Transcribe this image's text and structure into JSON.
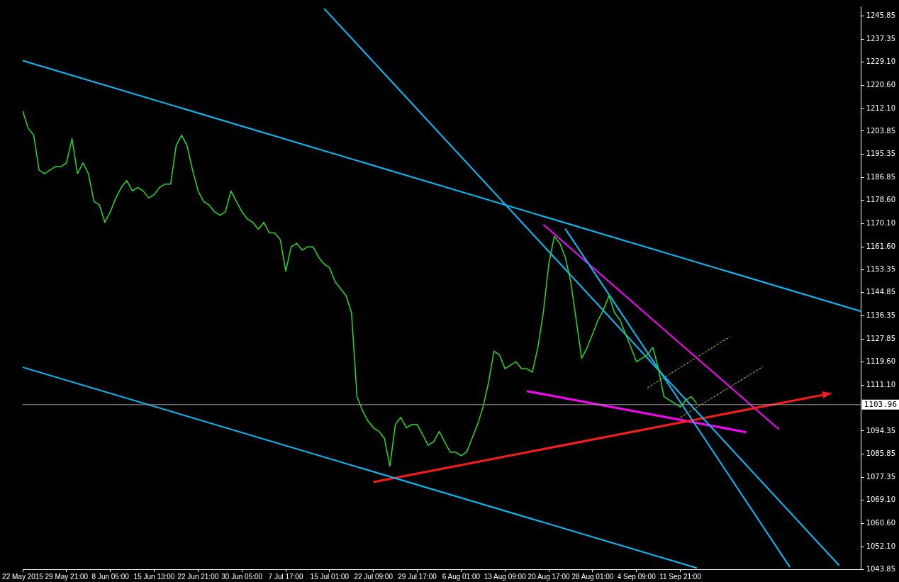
{
  "chart_data": {
    "type": "line",
    "categories": [
      "22 May 2015",
      null,
      null,
      null,
      null,
      null,
      null,
      null,
      "29 May 21:00",
      null,
      null,
      null,
      null,
      null,
      null,
      null,
      "8 Jun 05:00",
      null,
      null,
      null,
      null,
      null,
      null,
      null,
      "15 Jun 13:00",
      null,
      null,
      null,
      null,
      null,
      null,
      null,
      "22 Jun 21:00",
      null,
      null,
      null,
      null,
      null,
      null,
      null,
      "30 Jun 05:00",
      null,
      null,
      null,
      null,
      null,
      null,
      null,
      "7 Jul 17:00",
      null,
      null,
      null,
      null,
      null,
      null,
      null,
      "15 Jul 01:00",
      null,
      null,
      null,
      null,
      null,
      null,
      null,
      "22 Jul 09:00",
      null,
      null,
      null,
      null,
      null,
      null,
      null,
      "29 Jul 17:00",
      null,
      null,
      null,
      null,
      null,
      null,
      null,
      "6 Aug 01:00",
      null,
      null,
      null,
      null,
      null,
      null,
      null,
      "13 Aug 09:00",
      null,
      null,
      null,
      null,
      null,
      null,
      null,
      "20 Aug 17:00",
      null,
      null,
      null,
      null,
      null,
      null,
      null,
      "28 Aug 01:00",
      null,
      null,
      null,
      null,
      null,
      null,
      null,
      "4 Sep 09:00",
      null,
      null,
      null,
      null,
      null,
      null,
      null,
      "11 Sep 21:00",
      null,
      null,
      null,
      null,
      null,
      null,
      null,
      null,
      null,
      null,
      null,
      null,
      null,
      null,
      null,
      null,
      null,
      null,
      null,
      null,
      null,
      null,
      null,
      null,
      null,
      null,
      null,
      null,
      null,
      null,
      null,
      null,
      null
    ],
    "ylim": [
      1043.85,
      1249.4
    ],
    "yticks": [
      {
        "value": 1043.85,
        "label": "1043.85"
      },
      {
        "value": 1052.1,
        "label": "1052.10"
      },
      {
        "value": 1060.6,
        "label": "1060.60"
      },
      {
        "value": 1069.1,
        "label": "1069.10"
      },
      {
        "value": 1077.35,
        "label": "1077.35"
      },
      {
        "value": 1085.85,
        "label": "1085.85"
      },
      {
        "value": 1094.35,
        "label": "1094.35"
      },
      {
        "value": 1111.1,
        "label": "1111.10"
      },
      {
        "value": 1119.6,
        "label": "1119.60"
      },
      {
        "value": 1127.85,
        "label": "1127.85"
      },
      {
        "value": 1136.35,
        "label": "1136.35"
      },
      {
        "value": 1144.85,
        "label": "1144.85"
      },
      {
        "value": 1153.35,
        "label": "1153.35"
      },
      {
        "value": 1161.6,
        "label": "1161.60"
      },
      {
        "value": 1170.1,
        "label": "1170.10"
      },
      {
        "value": 1178.6,
        "label": "1178.60"
      },
      {
        "value": 1186.85,
        "label": "1186.85"
      },
      {
        "value": 1195.35,
        "label": "1195.35"
      },
      {
        "value": 1203.85,
        "label": "1203.85"
      },
      {
        "value": 1212.1,
        "label": "1212.10"
      },
      {
        "value": 1220.6,
        "label": "1220.60"
      },
      {
        "value": 1229.1,
        "label": "1229.10"
      },
      {
        "value": 1237.35,
        "label": "1237.35"
      },
      {
        "value": 1245.85,
        "label": "1245.85"
      }
    ],
    "grid": false,
    "legend": false,
    "ref_lines": [
      {
        "axis": "y",
        "value": 1103.96,
        "label": "1103.96",
        "color": "#9a9a9a"
      }
    ],
    "series": [
      {
        "type": "line",
        "color": "#22dd22",
        "values": [
          1211.2,
          1204.9,
          1202.4,
          1189.6,
          1188.3,
          1189.6,
          1190.9,
          1190.9,
          1192.2,
          1201.1,
          1188.3,
          1192.2,
          1188.3,
          1178.2,
          1176.9,
          1170.5,
          1174.4,
          1179.4,
          1183.3,
          1185.8,
          1182.0,
          1183.3,
          1182.0,
          1179.4,
          1180.7,
          1183.3,
          1184.5,
          1184.5,
          1198.5,
          1202.4,
          1198.5,
          1189.6,
          1182.0,
          1178.2,
          1176.9,
          1174.4,
          1173.1,
          1174.4,
          1182.0,
          1178.2,
          1174.4,
          1171.8,
          1170.5,
          1168.0,
          1170.5,
          1166.7,
          1166.7,
          1164.2,
          1152.7,
          1161.6,
          1162.9,
          1160.4,
          1161.6,
          1161.6,
          1157.8,
          1155.3,
          1154.0,
          1148.9,
          1146.3,
          1143.8,
          1137.5,
          1106.9,
          1101.8,
          1098.0,
          1095.5,
          1094.2,
          1091.7,
          1081.5,
          1096.7,
          1099.3,
          1095.5,
          1096.7,
          1096.7,
          1092.9,
          1089.1,
          1090.4,
          1094.2,
          1090.4,
          1086.6,
          1086.6,
          1085.3,
          1086.6,
          1091.7,
          1096.7,
          1103.1,
          1112.0,
          1123.5,
          1122.2,
          1117.1,
          1118.4,
          1119.6,
          1117.1,
          1117.1,
          1115.8,
          1124.8,
          1137.5,
          1155.3,
          1165.4,
          1162.9,
          1157.8,
          1148.9,
          1134.9,
          1120.9,
          1124.8,
          1129.8,
          1134.9,
          1138.7,
          1143.8,
          1137.5,
          1134.9,
          1129.8,
          1124.8,
          1119.6,
          1120.9,
          1122.2,
          1124.8,
          1117.1,
          1106.9,
          1105.6,
          1104.4,
          1103.1,
          1105.6,
          1106.9,
          1104.4,
          null,
          null,
          null,
          null,
          null,
          null,
          null,
          null,
          null,
          null,
          null,
          null,
          null,
          null,
          null,
          null,
          null,
          null,
          null,
          null,
          null,
          null,
          null,
          null,
          null,
          null,
          null,
          null,
          null,
          null
        ]
      },
      {
        "type": "line",
        "color": "#00bfff",
        "values": [
          1229.6,
          null,
          null,
          null,
          null,
          null,
          null,
          null,
          null,
          null,
          null,
          null,
          null,
          null,
          null,
          null,
          null,
          null,
          null,
          null,
          null,
          null,
          null,
          null,
          null,
          null,
          null,
          null,
          null,
          null,
          null,
          null,
          null,
          null,
          null,
          null,
          null,
          null,
          null,
          null,
          null,
          null,
          null,
          null,
          null,
          null,
          null,
          null,
          null,
          null,
          null,
          null,
          null,
          null,
          null,
          null,
          null,
          null,
          null,
          null,
          null,
          null,
          null,
          null,
          null,
          null,
          null,
          null,
          null,
          null,
          null,
          null,
          null,
          null,
          null,
          null,
          null,
          null,
          null,
          null,
          null,
          null,
          null,
          null,
          null,
          null,
          null,
          null,
          null,
          null,
          null,
          null,
          null,
          null,
          null,
          null,
          null,
          null,
          null,
          null,
          null,
          null,
          null,
          null,
          null,
          null,
          null,
          null,
          null,
          null,
          null,
          null,
          null,
          null,
          null,
          null,
          null,
          null,
          null,
          null,
          null,
          null,
          null,
          null,
          null,
          null,
          null,
          null,
          null,
          null,
          null,
          null,
          null,
          null,
          null,
          null,
          null,
          null,
          null,
          null,
          null,
          null,
          null,
          null,
          null,
          null,
          null,
          null,
          null,
          null,
          null,
          null,
          null,
          1138.0
        ]
      },
      {
        "type": "line",
        "color": "#00bfff",
        "values": [
          1117.6,
          null,
          null,
          null,
          null,
          null,
          null,
          null,
          null,
          null,
          null,
          null,
          null,
          null,
          null,
          null,
          null,
          null,
          null,
          null,
          null,
          null,
          null,
          null,
          null,
          null,
          null,
          null,
          null,
          null,
          null,
          null,
          null,
          null,
          null,
          null,
          null,
          null,
          null,
          null,
          null,
          null,
          null,
          null,
          null,
          null,
          null,
          null,
          null,
          null,
          null,
          null,
          null,
          null,
          null,
          null,
          null,
          null,
          null,
          null,
          null,
          null,
          null,
          null,
          null,
          null,
          null,
          null,
          null,
          null,
          null,
          null,
          null,
          null,
          null,
          null,
          null,
          null,
          null,
          null,
          null,
          null,
          null,
          null,
          null,
          null,
          null,
          null,
          null,
          null,
          null,
          null,
          null,
          null,
          null,
          null,
          null,
          null,
          null,
          null,
          null,
          null,
          null,
          null,
          null,
          null,
          null,
          null,
          null,
          null,
          null,
          null,
          null,
          null,
          null,
          null,
          null,
          null,
          null,
          null,
          null,
          null,
          null,
          1044.3,
          null,
          null,
          null,
          null,
          null,
          null,
          null,
          null,
          null,
          null,
          null,
          null,
          null,
          null,
          null,
          null,
          null,
          null,
          null,
          null,
          null,
          null,
          null,
          null,
          null,
          null,
          null,
          null,
          null,
          null
        ]
      },
      {
        "type": "line",
        "color": "#00bfff",
        "values": [
          null,
          null,
          null,
          null,
          null,
          null,
          null,
          null,
          null,
          null,
          null,
          null,
          null,
          null,
          null,
          null,
          null,
          null,
          null,
          null,
          null,
          null,
          null,
          null,
          null,
          null,
          null,
          null,
          null,
          null,
          null,
          null,
          null,
          null,
          null,
          null,
          null,
          null,
          null,
          null,
          null,
          null,
          null,
          null,
          null,
          null,
          null,
          null,
          null,
          null,
          null,
          null,
          null,
          null,
          null,
          1248.6,
          null,
          null,
          null,
          null,
          null,
          null,
          null,
          null,
          null,
          null,
          null,
          null,
          null,
          null,
          null,
          null,
          null,
          null,
          null,
          null,
          null,
          null,
          null,
          null,
          null,
          null,
          null,
          null,
          null,
          null,
          null,
          null,
          null,
          null,
          null,
          null,
          null,
          null,
          null,
          null,
          null,
          null,
          null,
          null,
          null,
          null,
          null,
          null,
          null,
          null,
          null,
          null,
          null,
          null,
          null,
          null,
          null,
          null,
          null,
          null,
          null,
          null,
          null,
          null,
          null,
          null,
          null,
          null,
          null,
          null,
          null,
          null,
          null,
          null,
          null,
          null,
          null,
          null,
          null,
          null,
          null,
          null,
          null,
          null,
          null,
          null,
          null,
          null,
          null,
          null,
          null,
          null,
          null,
          1045.2,
          null,
          null,
          null,
          null
        ]
      },
      {
        "type": "line",
        "color": "#00bfff",
        "values": [
          null,
          null,
          null,
          null,
          null,
          null,
          null,
          null,
          null,
          null,
          null,
          null,
          null,
          null,
          null,
          null,
          null,
          null,
          null,
          null,
          null,
          null,
          null,
          null,
          null,
          null,
          null,
          null,
          null,
          null,
          null,
          null,
          null,
          null,
          null,
          null,
          null,
          null,
          null,
          null,
          null,
          null,
          null,
          null,
          null,
          null,
          null,
          null,
          null,
          null,
          null,
          null,
          null,
          null,
          null,
          null,
          null,
          null,
          null,
          null,
          null,
          null,
          null,
          null,
          null,
          null,
          null,
          null,
          null,
          null,
          null,
          null,
          null,
          null,
          null,
          null,
          null,
          null,
          null,
          null,
          null,
          null,
          null,
          null,
          null,
          null,
          null,
          null,
          null,
          null,
          null,
          null,
          null,
          null,
          null,
          null,
          null,
          null,
          null,
          1168.2,
          null,
          null,
          null,
          null,
          null,
          null,
          null,
          null,
          null,
          null,
          null,
          null,
          null,
          null,
          null,
          null,
          null,
          null,
          null,
          null,
          null,
          null,
          null,
          null,
          null,
          null,
          null,
          null,
          null,
          null,
          null,
          null,
          null,
          null,
          null,
          null,
          null,
          null,
          null,
          null,
          1044.6,
          null,
          null,
          null,
          null,
          null,
          null,
          null,
          null,
          null,
          null,
          null,
          null,
          null
        ]
      },
      {
        "type": "line",
        "color": "#ff1a1a",
        "values": [
          null,
          null,
          null,
          null,
          null,
          null,
          null,
          null,
          null,
          null,
          null,
          null,
          null,
          null,
          null,
          null,
          null,
          null,
          null,
          null,
          null,
          null,
          null,
          null,
          null,
          null,
          null,
          null,
          null,
          null,
          null,
          null,
          null,
          null,
          null,
          null,
          null,
          null,
          null,
          null,
          null,
          null,
          null,
          null,
          null,
          null,
          null,
          null,
          null,
          null,
          null,
          null,
          null,
          null,
          null,
          null,
          null,
          null,
          null,
          null,
          null,
          null,
          null,
          null,
          1075.7,
          null,
          null,
          null,
          null,
          null,
          null,
          null,
          null,
          null,
          null,
          null,
          null,
          null,
          null,
          null,
          null,
          null,
          null,
          null,
          null,
          null,
          null,
          null,
          null,
          null,
          null,
          null,
          null,
          null,
          null,
          null,
          null,
          null,
          null,
          null,
          null,
          null,
          null,
          null,
          null,
          null,
          null,
          null,
          null,
          null,
          null,
          null,
          null,
          null,
          null,
          null,
          null,
          null,
          null,
          null,
          null,
          null,
          null,
          null,
          null,
          null,
          null,
          null,
          null,
          null,
          null,
          null,
          null,
          null,
          null,
          null,
          null,
          null,
          null,
          null,
          null,
          null,
          null,
          null,
          null,
          null,
          1107.5,
          null,
          null,
          null,
          null,
          null,
          null,
          null
        ]
      },
      {
        "type": "line",
        "color": "#ff00ff",
        "values": [
          null,
          null,
          null,
          null,
          null,
          null,
          null,
          null,
          null,
          null,
          null,
          null,
          null,
          null,
          null,
          null,
          null,
          null,
          null,
          null,
          null,
          null,
          null,
          null,
          null,
          null,
          null,
          null,
          null,
          null,
          null,
          null,
          null,
          null,
          null,
          null,
          null,
          null,
          null,
          null,
          null,
          null,
          null,
          null,
          null,
          null,
          null,
          null,
          null,
          null,
          null,
          null,
          null,
          null,
          null,
          null,
          null,
          null,
          null,
          null,
          null,
          null,
          null,
          null,
          null,
          null,
          null,
          null,
          null,
          null,
          null,
          null,
          null,
          null,
          null,
          null,
          null,
          null,
          null,
          null,
          null,
          null,
          null,
          null,
          null,
          null,
          null,
          null,
          null,
          null,
          null,
          null,
          1108.9,
          null,
          null,
          null,
          null,
          null,
          null,
          null,
          null,
          null,
          null,
          null,
          null,
          null,
          null,
          null,
          null,
          null,
          null,
          null,
          null,
          null,
          null,
          null,
          null,
          null,
          null,
          null,
          null,
          null,
          null,
          null,
          null,
          null,
          null,
          null,
          null,
          null,
          null,
          null,
          1093.9,
          null,
          null,
          null,
          null,
          null,
          null,
          null,
          null,
          null,
          null,
          null,
          null,
          null,
          null,
          null,
          null,
          null,
          null,
          null,
          null,
          null
        ]
      },
      {
        "type": "line",
        "color": "#ff00ff",
        "values": [
          null,
          null,
          null,
          null,
          null,
          null,
          null,
          null,
          null,
          null,
          null,
          null,
          null,
          null,
          null,
          null,
          null,
          null,
          null,
          null,
          null,
          null,
          null,
          null,
          null,
          null,
          null,
          null,
          null,
          null,
          null,
          null,
          null,
          null,
          null,
          null,
          null,
          null,
          null,
          null,
          null,
          null,
          null,
          null,
          null,
          null,
          null,
          null,
          null,
          null,
          null,
          null,
          null,
          null,
          null,
          null,
          null,
          null,
          null,
          null,
          null,
          null,
          null,
          null,
          null,
          null,
          null,
          null,
          null,
          null,
          null,
          null,
          null,
          null,
          null,
          null,
          null,
          null,
          null,
          null,
          null,
          null,
          null,
          null,
          null,
          null,
          null,
          null,
          null,
          null,
          null,
          null,
          null,
          null,
          null,
          1169.7,
          null,
          null,
          null,
          null,
          null,
          null,
          null,
          null,
          null,
          null,
          null,
          null,
          null,
          null,
          null,
          null,
          null,
          null,
          null,
          null,
          null,
          null,
          null,
          null,
          null,
          null,
          null,
          null,
          null,
          null,
          null,
          null,
          null,
          null,
          null,
          null,
          null,
          null,
          null,
          null,
          null,
          null,
          1094.9,
          null,
          null,
          null,
          null,
          null,
          null,
          null,
          null,
          null,
          null,
          null,
          null,
          null,
          null,
          null
        ]
      },
      {
        "type": "line",
        "color": "#ffd700",
        "line_style": "dashed",
        "values": [
          null,
          null,
          null,
          null,
          null,
          null,
          null,
          null,
          null,
          null,
          null,
          null,
          null,
          null,
          null,
          null,
          null,
          null,
          null,
          null,
          null,
          null,
          null,
          null,
          null,
          null,
          null,
          null,
          null,
          null,
          null,
          null,
          null,
          null,
          null,
          null,
          null,
          null,
          null,
          null,
          null,
          null,
          null,
          null,
          null,
          null,
          null,
          null,
          null,
          null,
          null,
          null,
          null,
          null,
          null,
          null,
          null,
          null,
          null,
          null,
          null,
          null,
          null,
          null,
          null,
          null,
          null,
          null,
          null,
          null,
          null,
          null,
          null,
          null,
          null,
          null,
          null,
          null,
          null,
          null,
          null,
          null,
          null,
          null,
          null,
          null,
          null,
          null,
          null,
          null,
          null,
          null,
          null,
          null,
          null,
          null,
          null,
          null,
          null,
          null,
          null,
          null,
          null,
          null,
          null,
          null,
          null,
          null,
          null,
          null,
          null,
          null,
          null,
          null,
          1110.1,
          null,
          null,
          null,
          null,
          null,
          null,
          null,
          null,
          null,
          null,
          null,
          null,
          null,
          null,
          1128.7,
          null,
          null,
          null,
          null,
          null,
          null,
          null,
          null,
          null,
          null,
          null,
          null,
          null,
          null,
          null,
          null,
          null,
          null,
          null,
          null,
          null,
          null,
          null,
          null
        ]
      },
      {
        "type": "line",
        "color": "#ffd700",
        "line_style": "dashed",
        "values": [
          null,
          null,
          null,
          null,
          null,
          null,
          null,
          null,
          null,
          null,
          null,
          null,
          null,
          null,
          null,
          null,
          null,
          null,
          null,
          null,
          null,
          null,
          null,
          null,
          null,
          null,
          null,
          null,
          null,
          null,
          null,
          null,
          null,
          null,
          null,
          null,
          null,
          null,
          null,
          null,
          null,
          null,
          null,
          null,
          null,
          null,
          null,
          null,
          null,
          null,
          null,
          null,
          null,
          null,
          null,
          null,
          null,
          null,
          null,
          null,
          null,
          null,
          null,
          null,
          null,
          null,
          null,
          null,
          null,
          null,
          null,
          null,
          null,
          null,
          null,
          null,
          null,
          null,
          null,
          null,
          null,
          null,
          null,
          null,
          null,
          null,
          null,
          null,
          null,
          null,
          null,
          null,
          null,
          null,
          null,
          null,
          null,
          null,
          null,
          null,
          null,
          null,
          null,
          null,
          null,
          null,
          null,
          null,
          null,
          null,
          null,
          null,
          null,
          null,
          null,
          null,
          null,
          null,
          null,
          null,
          1099.3,
          null,
          null,
          null,
          null,
          null,
          null,
          null,
          null,
          null,
          null,
          null,
          null,
          null,
          null,
          1117.7,
          null,
          null,
          null,
          null,
          null,
          null,
          null,
          null,
          null,
          null,
          null,
          null,
          null,
          null,
          null,
          null,
          null,
          null
        ]
      }
    ]
  }
}
